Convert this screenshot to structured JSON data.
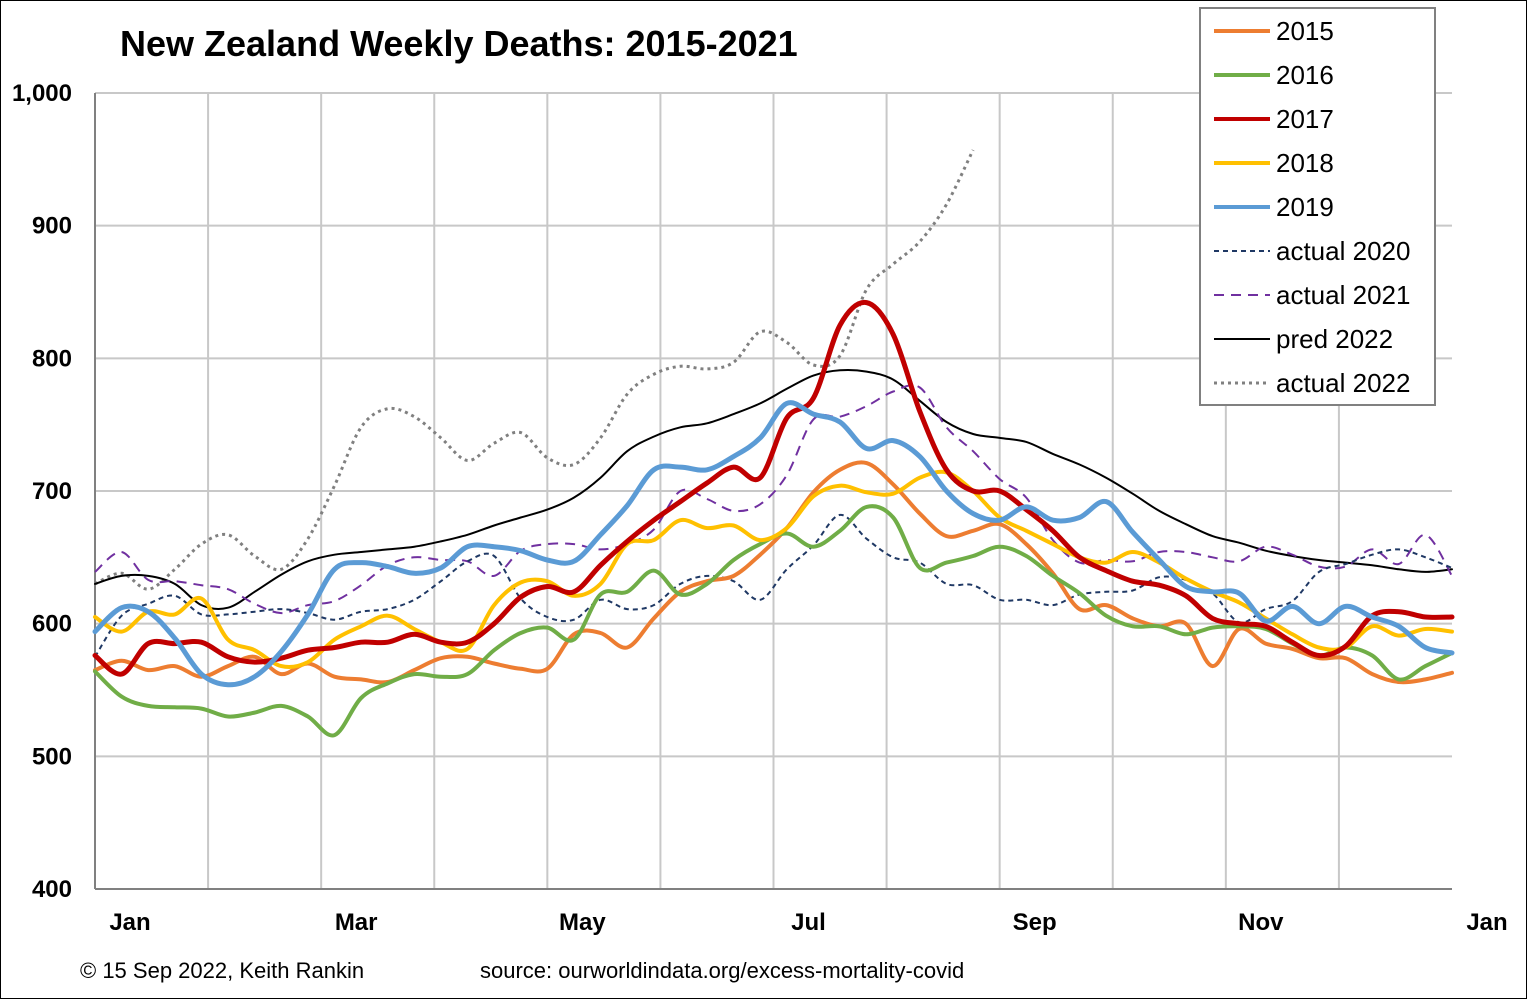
{
  "chart_data": {
    "type": "line",
    "title": "New Zealand Weekly Deaths: 2015-2021",
    "xlabel": "",
    "ylabel": "",
    "ylim": [
      400,
      1000
    ],
    "yticks": [
      "400",
      "500",
      "600",
      "700",
      "800",
      "900",
      "1,000"
    ],
    "xticks": [
      "Jan",
      "Mar",
      "May",
      "Jul",
      "Sep",
      "Nov",
      "Jan"
    ],
    "grid": true,
    "legend_position": "top-right",
    "x_weeks": [
      1,
      2,
      3,
      4,
      5,
      6,
      7,
      8,
      9,
      10,
      11,
      12,
      13,
      14,
      15,
      16,
      17,
      18,
      19,
      20,
      21,
      22,
      23,
      24,
      25,
      26,
      27,
      28,
      29,
      30,
      31,
      32,
      33,
      34,
      35,
      36,
      37,
      38,
      39,
      40,
      41,
      42,
      43,
      44,
      45,
      46,
      47,
      48,
      49,
      50,
      51,
      52
    ],
    "series": [
      {
        "name": "2015",
        "color": "#ED7D31",
        "style": "solid",
        "width": 4,
        "values": [
          565,
          572,
          565,
          568,
          560,
          568,
          575,
          562,
          570,
          560,
          558,
          556,
          565,
          574,
          575,
          570,
          566,
          566,
          592,
          593,
          582,
          604,
          624,
          632,
          636,
          652,
          672,
          699,
          716,
          721,
          705,
          683,
          666,
          670,
          675,
          660,
          638,
          611,
          614,
          604,
          598,
          600,
          568,
          596,
          585,
          581,
          574,
          574,
          562,
          556,
          558,
          563
        ]
      },
      {
        "name": "2016",
        "color": "#70AD47",
        "style": "solid",
        "width": 4,
        "values": [
          564,
          545,
          538,
          537,
          536,
          530,
          533,
          538,
          530,
          516,
          544,
          555,
          562,
          560,
          562,
          580,
          593,
          597,
          588,
          622,
          624,
          640,
          622,
          630,
          648,
          660,
          668,
          658,
          670,
          688,
          680,
          642,
          646,
          651,
          658,
          651,
          636,
          623,
          606,
          598,
          598,
          592,
          597,
          598,
          596,
          585,
          576,
          582,
          576,
          558,
          568,
          578
        ]
      },
      {
        "name": "2017",
        "color": "#C00000",
        "style": "solid",
        "width": 5,
        "values": [
          576,
          562,
          585,
          585,
          586,
          575,
          571,
          574,
          580,
          582,
          586,
          586,
          592,
          586,
          586,
          600,
          620,
          628,
          624,
          644,
          662,
          678,
          692,
          706,
          718,
          710,
          755,
          770,
          825,
          842,
          818,
          760,
          716,
          700,
          700,
          686,
          670,
          650,
          640,
          632,
          629,
          621,
          604,
          600,
          598,
          586,
          576,
          583,
          606,
          609,
          605,
          605
        ]
      },
      {
        "name": "2018",
        "color": "#FFC000",
        "style": "solid",
        "width": 4,
        "values": [
          605,
          594,
          609,
          607,
          619,
          588,
          580,
          568,
          571,
          588,
          598,
          606,
          596,
          586,
          581,
          614,
          631,
          632,
          621,
          630,
          660,
          663,
          678,
          672,
          674,
          663,
          672,
          696,
          704,
          699,
          698,
          710,
          714,
          700,
          680,
          670,
          660,
          650,
          646,
          654,
          646,
          634,
          624,
          616,
          604,
          592,
          582,
          582,
          598,
          591,
          596,
          594
        ]
      },
      {
        "name": "2019",
        "color": "#5B9BD5",
        "style": "solid",
        "width": 5,
        "values": [
          594,
          612,
          609,
          589,
          562,
          554,
          560,
          579,
          607,
          641,
          646,
          643,
          638,
          642,
          658,
          658,
          655,
          648,
          647,
          667,
          689,
          716,
          718,
          716,
          726,
          740,
          766,
          758,
          752,
          732,
          738,
          726,
          700,
          683,
          678,
          688,
          678,
          680,
          692,
          669,
          648,
          628,
          624,
          623,
          602,
          613,
          600,
          613,
          605,
          598,
          582,
          578
        ]
      },
      {
        "name": "actual 2020",
        "color": "#1F3864",
        "style": "dashed-short",
        "width": 2,
        "values": [
          575,
          606,
          615,
          621,
          607,
          607,
          609,
          611,
          608,
          603,
          609,
          611,
          618,
          632,
          647,
          651,
          619,
          605,
          603,
          618,
          611,
          614,
          630,
          636,
          632,
          618,
          641,
          659,
          682,
          664,
          650,
          646,
          630,
          629,
          618,
          618,
          614,
          622,
          624,
          625,
          635,
          633,
          623,
          601,
          611,
          617,
          639,
          645,
          652,
          656,
          650,
          642
        ]
      },
      {
        "name": "actual 2021",
        "color": "#7030A0",
        "style": "dashed",
        "width": 2,
        "values": [
          639,
          654,
          633,
          632,
          629,
          626,
          615,
          608,
          614,
          617,
          629,
          644,
          650,
          648,
          647,
          636,
          655,
          660,
          660,
          656,
          660,
          671,
          700,
          694,
          685,
          690,
          712,
          754,
          756,
          764,
          775,
          778,
          748,
          730,
          709,
          695,
          663,
          646,
          648,
          647,
          654,
          654,
          650,
          647,
          658,
          652,
          643,
          643,
          656,
          645,
          667,
          636
        ]
      },
      {
        "name": "pred 2022",
        "color": "#000000",
        "style": "solid",
        "width": 2,
        "values": [
          630,
          636,
          636,
          630,
          614,
          612,
          624,
          637,
          647,
          652,
          654,
          656,
          658,
          662,
          667,
          674,
          680,
          686,
          695,
          710,
          730,
          741,
          748,
          751,
          758,
          766,
          777,
          787,
          791,
          790,
          784,
          768,
          752,
          743,
          740,
          737,
          728,
          720,
          710,
          698,
          685,
          675,
          666,
          661,
          655,
          651,
          648,
          646,
          644,
          641,
          639,
          641
        ]
      },
      {
        "name": "actual 2022",
        "color": "#808080",
        "style": "dotted",
        "width": 3,
        "values": [
          630,
          638,
          626,
          641,
          660,
          667,
          651,
          641,
          664,
          704,
          748,
          762,
          756,
          740,
          723,
          736,
          744,
          725,
          720,
          740,
          773,
          788,
          794,
          792,
          797,
          820,
          812,
          795,
          802,
          852,
          871,
          888,
          916,
          957,
          null,
          null,
          null,
          null,
          null,
          null,
          null,
          null,
          null,
          null,
          null,
          null,
          null,
          null,
          null,
          null,
          null,
          null
        ]
      }
    ]
  },
  "footer": {
    "copyright": "© 15 Sep 2022, Keith Rankin",
    "source": "source: ourworldindata.org/excess-mortality-covid"
  }
}
